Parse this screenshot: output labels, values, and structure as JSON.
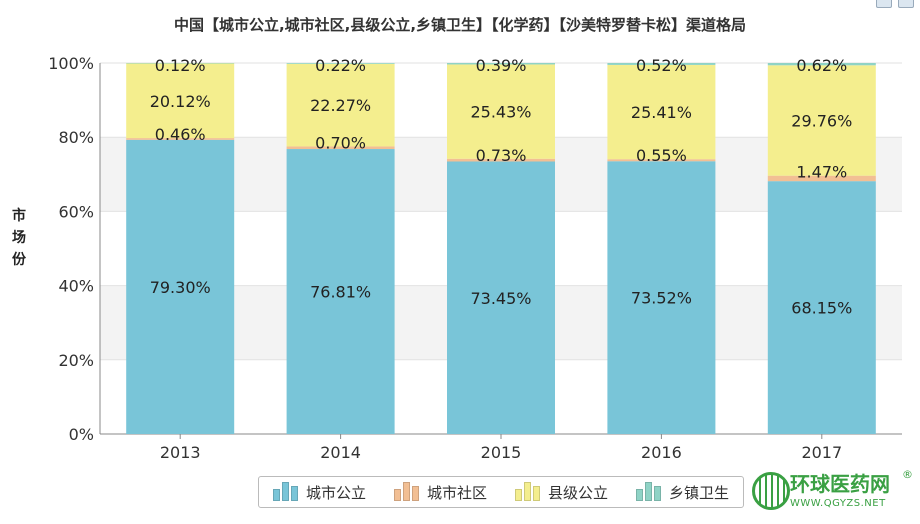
{
  "chart_data": {
    "type": "bar",
    "stacked": true,
    "title": "中国【城市公立,城市社区,县级公立,乡镇卫生】【化学药】【沙美特罗替卡松】渠道格局",
    "ylabel": "市场份",
    "ylim": [
      0,
      100
    ],
    "yticks": [
      "0%",
      "20%",
      "40%",
      "60%",
      "80%",
      "100%"
    ],
    "categories": [
      "2013",
      "2014",
      "2015",
      "2016",
      "2017"
    ],
    "series": [
      {
        "name": "城市公立",
        "values": [
          79.3,
          76.81,
          73.45,
          73.52,
          68.15
        ],
        "labels": [
          "79.30%",
          "76.81%",
          "73.45%",
          "73.52%",
          "68.15%"
        ],
        "color": "#79c5d8"
      },
      {
        "name": "城市社区",
        "values": [
          0.46,
          0.7,
          0.73,
          0.55,
          1.47
        ],
        "labels": [
          "0.46%",
          "0.70%",
          "0.73%",
          "0.55%",
          "1.47%"
        ],
        "color": "#f2bf94"
      },
      {
        "name": "县级公立",
        "values": [
          20.12,
          22.27,
          25.43,
          25.41,
          29.76
        ],
        "labels": [
          "20.12%",
          "22.27%",
          "25.43%",
          "25.41%",
          "29.76%"
        ],
        "color": "#f4ee8e"
      },
      {
        "name": "乡镇卫生",
        "values": [
          0.12,
          0.22,
          0.39,
          0.52,
          0.62
        ],
        "labels": [
          "0.12%",
          "0.22%",
          "0.39%",
          "0.52%",
          "0.62%"
        ],
        "color": "#8fd3c6"
      }
    ],
    "legend": "bottom"
  },
  "brand": {
    "name": "环球医药网",
    "reg": "®",
    "url": "WWW.QGYZS.NET"
  }
}
